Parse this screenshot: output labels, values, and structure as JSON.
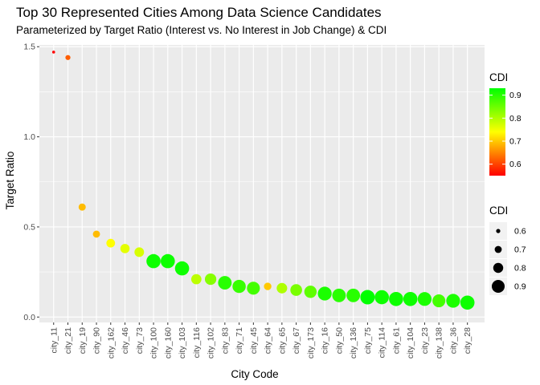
{
  "chart_data": {
    "type": "scatter",
    "title": "Top 30 Represented Cities Among Data Science Candidates",
    "subtitle": "Parameterized by Target Ratio (Interest vs. No Interest in Job Change) & CDI",
    "xlabel": "City Code",
    "ylabel": "Target Ratio",
    "ylim": [
      -0.03,
      1.51
    ],
    "yticks": [
      0.0,
      0.5,
      1.0,
      1.5
    ],
    "ytick_labels": [
      "0.0",
      "0.5",
      "1.0",
      "1.5"
    ],
    "grid": true,
    "categories": [
      "city_11",
      "city_21",
      "city_19",
      "city_90",
      "city_162",
      "city_46",
      "city_73",
      "city_100",
      "city_160",
      "city_103",
      "city_116",
      "city_102",
      "city_83",
      "city_71",
      "city_45",
      "city_64",
      "city_65",
      "city_67",
      "city_173",
      "city_16",
      "city_50",
      "city_136",
      "city_75",
      "city_114",
      "city_61",
      "city_104",
      "city_23",
      "city_138",
      "city_36",
      "city_28"
    ],
    "values": [
      1.47,
      1.44,
      0.61,
      0.46,
      0.41,
      0.38,
      0.36,
      0.31,
      0.31,
      0.27,
      0.21,
      0.21,
      0.19,
      0.17,
      0.16,
      0.17,
      0.16,
      0.15,
      0.14,
      0.13,
      0.12,
      0.12,
      0.11,
      0.11,
      0.1,
      0.1,
      0.1,
      0.09,
      0.09,
      0.08
    ],
    "cdi": [
      0.55,
      0.62,
      0.69,
      0.69,
      0.74,
      0.76,
      0.77,
      0.92,
      0.92,
      0.92,
      0.79,
      0.83,
      0.9,
      0.89,
      0.88,
      0.7,
      0.8,
      0.84,
      0.86,
      0.91,
      0.9,
      0.9,
      0.93,
      0.92,
      0.92,
      0.92,
      0.91,
      0.88,
      0.91,
      0.92
    ],
    "legend_color": {
      "title": "CDI",
      "ticks": [
        0.6,
        0.7,
        0.8,
        0.9
      ],
      "tick_labels": [
        "0.6",
        "0.7",
        "0.8",
        "0.9"
      ],
      "range": [
        0.55,
        0.93
      ],
      "low_color": "#ff0000",
      "mid_color": "#ffff00",
      "high_color": "#00ff00"
    },
    "legend_size": {
      "title": "CDI",
      "values": [
        0.6,
        0.7,
        0.8,
        0.9
      ],
      "labels": [
        "0.6",
        "0.7",
        "0.8",
        "0.9"
      ]
    },
    "colors": {
      "panel_background": "#ebebeb",
      "grid_major": "#ffffff"
    }
  }
}
